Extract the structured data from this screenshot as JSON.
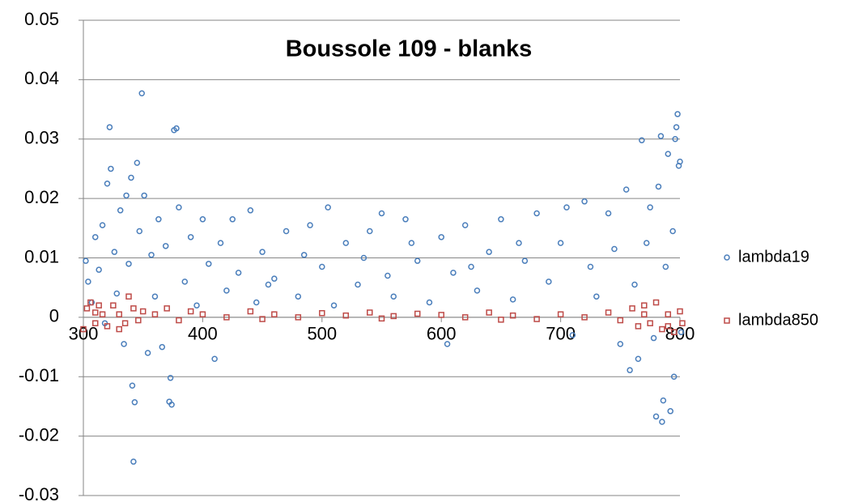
{
  "chart_data": {
    "type": "scatter",
    "title": "Boussole 109 - blanks",
    "xlim": [
      300,
      800
    ],
    "xticks": [
      300,
      400,
      500,
      600,
      700,
      800
    ],
    "ylim": [
      -0.03,
      0.05
    ],
    "yticks": [
      0.05,
      0.04,
      0.03,
      0.02,
      0.01,
      0,
      -0.01,
      -0.02,
      -0.03
    ],
    "grid": true,
    "legend": "right",
    "series": [
      {
        "name": "lambda19",
        "color": "#4a7ebb",
        "marker": "circle",
        "x": [
          302,
          304,
          307,
          310,
          313,
          316,
          318,
          320,
          322,
          323,
          326,
          328,
          331,
          334,
          336,
          338,
          340,
          341,
          342,
          343,
          345,
          347,
          349,
          351,
          354,
          357,
          360,
          363,
          366,
          369,
          372,
          373,
          374,
          376,
          378,
          380,
          385,
          390,
          395,
          400,
          405,
          410,
          415,
          420,
          425,
          430,
          440,
          445,
          450,
          460,
          470,
          480,
          490,
          500,
          505,
          510,
          520,
          530,
          540,
          550,
          555,
          560,
          570,
          580,
          590,
          600,
          605,
          610,
          620,
          630,
          640,
          650,
          660,
          670,
          680,
          690,
          700,
          705,
          710,
          720,
          725,
          730,
          740,
          745,
          750,
          755,
          758,
          762,
          765,
          768,
          772,
          775,
          778,
          780,
          782,
          784,
          785,
          786,
          788,
          790,
          792,
          794,
          795,
          796,
          797,
          798,
          799,
          800,
          801,
          535,
          575,
          625,
          665,
          455,
          485
        ],
        "values": [
          0.0095,
          0.006,
          0.0025,
          0.0135,
          0.008,
          0.0155,
          -0.001,
          0.0225,
          0.032,
          0.025,
          0.011,
          0.004,
          0.018,
          -0.0045,
          0.0205,
          0.009,
          0.0235,
          -0.0115,
          -0.0243,
          -0.0143,
          0.026,
          0.0145,
          0.0377,
          0.0205,
          -0.006,
          0.0105,
          0.0035,
          0.0165,
          -0.005,
          0.012,
          -0.0142,
          -0.0102,
          -0.0147,
          0.0315,
          0.0318,
          0.0185,
          0.006,
          0.0135,
          0.002,
          0.0165,
          0.009,
          -0.007,
          0.0125,
          0.0045,
          0.0165,
          0.0075,
          0.018,
          0.0025,
          0.011,
          0.0065,
          0.0145,
          0.0035,
          0.0155,
          0.0085,
          0.0185,
          0.002,
          0.0125,
          0.0055,
          0.0145,
          0.0175,
          0.007,
          0.0035,
          0.0165,
          0.0095,
          0.0025,
          0.0135,
          -0.0045,
          0.0075,
          0.0155,
          0.0045,
          0.011,
          0.0165,
          0.003,
          0.0095,
          0.0175,
          0.006,
          0.0125,
          0.0185,
          -0.003,
          0.0195,
          0.0085,
          0.0035,
          0.0175,
          0.0115,
          -0.0045,
          0.0215,
          -0.0089,
          0.0055,
          -0.007,
          0.0298,
          0.0125,
          0.0185,
          -0.0035,
          -0.0167,
          0.022,
          0.0305,
          -0.0176,
          -0.014,
          0.0085,
          0.0275,
          -0.0158,
          0.0145,
          -0.01,
          0.03,
          0.032,
          0.0342,
          0.0255,
          0.0262,
          -0.0025,
          0.01,
          0.0125,
          0.0085,
          0.0125,
          0.0055,
          0.0105
        ]
      },
      {
        "name": "lambda850",
        "color": "#be4b48",
        "marker": "square",
        "x": [
          300,
          303,
          306,
          310,
          313,
          316,
          320,
          325,
          330,
          335,
          338,
          342,
          346,
          350,
          360,
          370,
          380,
          390,
          400,
          420,
          440,
          460,
          480,
          500,
          520,
          540,
          560,
          580,
          600,
          620,
          640,
          660,
          680,
          700,
          720,
          740,
          750,
          760,
          765,
          770,
          775,
          780,
          785,
          790,
          795,
          800,
          802,
          310,
          330,
          450,
          550,
          650,
          770,
          790
        ],
        "values": [
          -0.002,
          0.0015,
          0.0025,
          -0.001,
          0.002,
          0.0005,
          -0.0015,
          0.002,
          0.0005,
          -0.001,
          0.0035,
          0.0015,
          -0.0005,
          0.001,
          0.0005,
          0.0015,
          -0.0005,
          0.001,
          0.0005,
          0,
          0.001,
          0.0005,
          0,
          0.0007,
          0.0003,
          0.0008,
          0.0002,
          0.0006,
          0.0004,
          0,
          0.0008,
          0.0003,
          -0.0003,
          0.0005,
          0,
          0.0008,
          -0.0005,
          0.0015,
          -0.0015,
          0.002,
          -0.001,
          0.0025,
          -0.002,
          0.0005,
          -0.0025,
          0.001,
          -0.001,
          0.0008,
          -0.002,
          -0.0003,
          -0.0002,
          -0.0004,
          0.0005,
          -0.0015
        ]
      }
    ]
  }
}
